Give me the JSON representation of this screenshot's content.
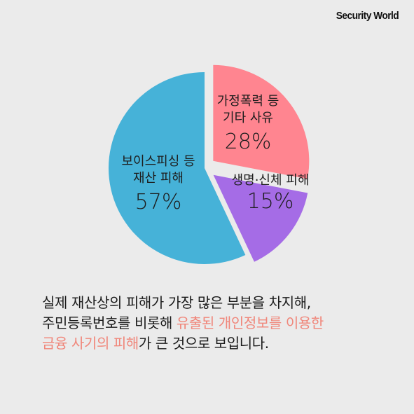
{
  "brand": "Security World",
  "chart_data": {
    "type": "pie",
    "slices": [
      {
        "key": "family",
        "label_lines": [
          "가정폭력 등",
          "기타 사유"
        ],
        "value": 28,
        "display": "28%",
        "color": "#ff8590"
      },
      {
        "key": "health",
        "label_lines": [
          "생명·신체 피해"
        ],
        "value": 15,
        "display": "15%",
        "color": "#a56ce6"
      },
      {
        "key": "phishing",
        "label_lines": [
          "보이스피싱 등",
          "재산 피해"
        ],
        "value": 57,
        "display": "57%",
        "color": "#46b2d8"
      }
    ],
    "exploded": [
      "family",
      "health"
    ]
  },
  "caption": {
    "line1": "실제 재산상의 피해가 가장 많은 부분을 차지해,",
    "line2_a": "주민등록번호를 비롯해 ",
    "line2_b": "유출된 개인정보를 이용한",
    "line3_a": "금융 사기의 피해",
    "line3_b": "가 큰 것으로 보입니다."
  }
}
